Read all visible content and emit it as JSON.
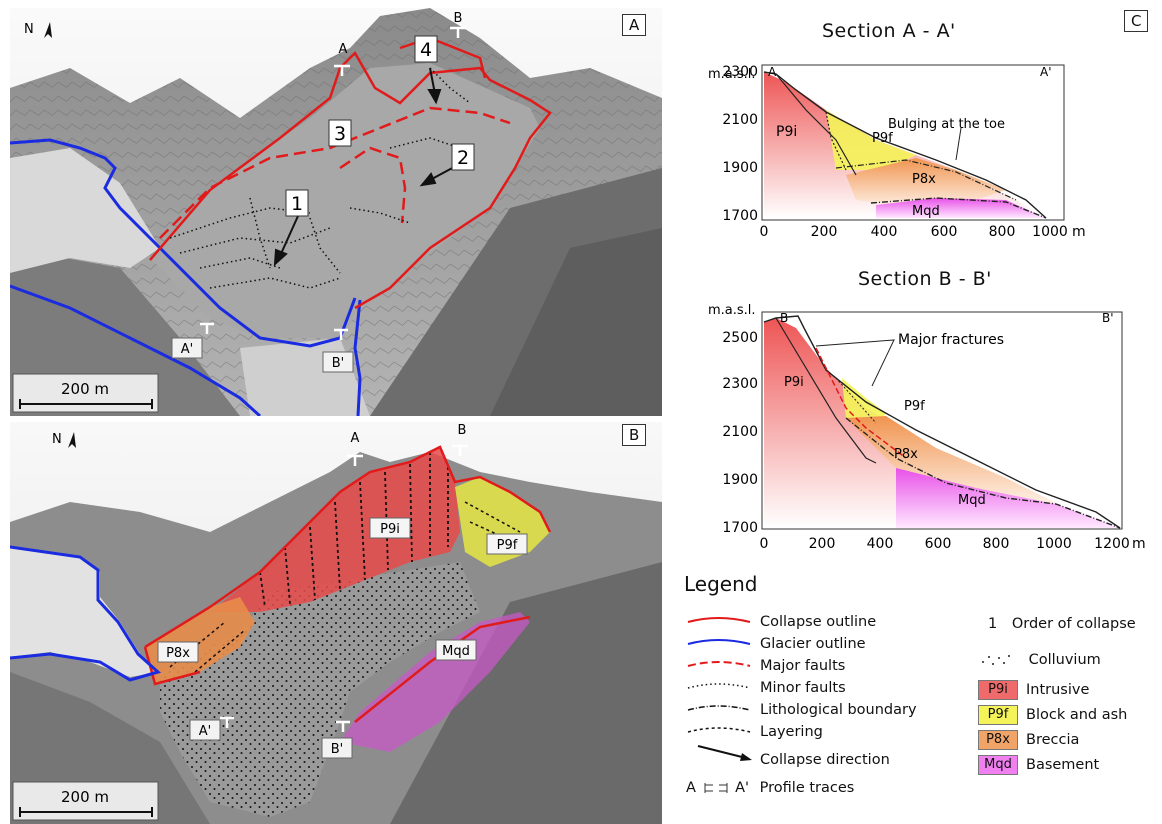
{
  "panels": {
    "a": {
      "tag": "A",
      "north": "N",
      "scale": "200 m",
      "profile_labels": [
        "A",
        "B",
        "A'",
        "B'"
      ],
      "collapse_numbers": [
        "1",
        "2",
        "3",
        "4"
      ]
    },
    "b": {
      "tag": "B",
      "north": "N",
      "scale": "200 m",
      "profile_labels": [
        "A",
        "B",
        "A'",
        "B'"
      ],
      "unit_labels": [
        "P9i",
        "P9f",
        "P8x",
        "Mqd"
      ]
    },
    "c": {
      "tag": "C"
    }
  },
  "section_a": {
    "title": "Section A - A'",
    "ylabel": "m.a.s.l.",
    "xunit": "m",
    "start": "A",
    "end": "A'",
    "yticks": [
      "2300",
      "2100",
      "1900",
      "1700"
    ],
    "xticks": [
      "0",
      "200",
      "400",
      "600",
      "800",
      "1000"
    ],
    "annotation": "Bulging at the toe",
    "units": [
      "P9i",
      "P9f",
      "P8x",
      "Mqd"
    ]
  },
  "section_b": {
    "title": "Section B - B'",
    "ylabel": "m.a.s.l.",
    "xunit": "m",
    "start": "B",
    "end": "B'",
    "yticks": [
      "2500",
      "2300",
      "2100",
      "1900",
      "1700"
    ],
    "xticks": [
      "0",
      "200",
      "400",
      "600",
      "800",
      "1000",
      "1200"
    ],
    "annotation": "Major fractures",
    "units": [
      "P9i",
      "P9f",
      "P8x",
      "Mqd"
    ]
  },
  "legend": {
    "title": "Legend",
    "lines": [
      {
        "label": "Collapse outline",
        "color": "#e11b1b"
      },
      {
        "label": "Glacier outline",
        "color": "#1a2be0"
      },
      {
        "label": "Major faults",
        "color": "#e11b1b"
      },
      {
        "label": "Minor faults",
        "color": "#111111"
      },
      {
        "label": "Lithological boundary",
        "color": "#111111"
      },
      {
        "label": "Layering",
        "color": "#111111"
      },
      {
        "label": "Collapse direction",
        "color": "#111111"
      },
      {
        "label": "Profile traces",
        "prefix": "A",
        "suffix": "A'"
      }
    ],
    "order": {
      "number": "1",
      "label": "Order of collapse"
    },
    "colluvium": "Colluvium",
    "units": [
      {
        "code": "P9i",
        "label": "Intrusive",
        "color": "#ef6b6b"
      },
      {
        "code": "P9f",
        "label": "Block and ash",
        "color": "#f4f45a"
      },
      {
        "code": "P8x",
        "label": "Breccia",
        "color": "#f0a468"
      },
      {
        "code": "Mqd",
        "label": "Basement",
        "color": "#f07ff0"
      }
    ]
  }
}
